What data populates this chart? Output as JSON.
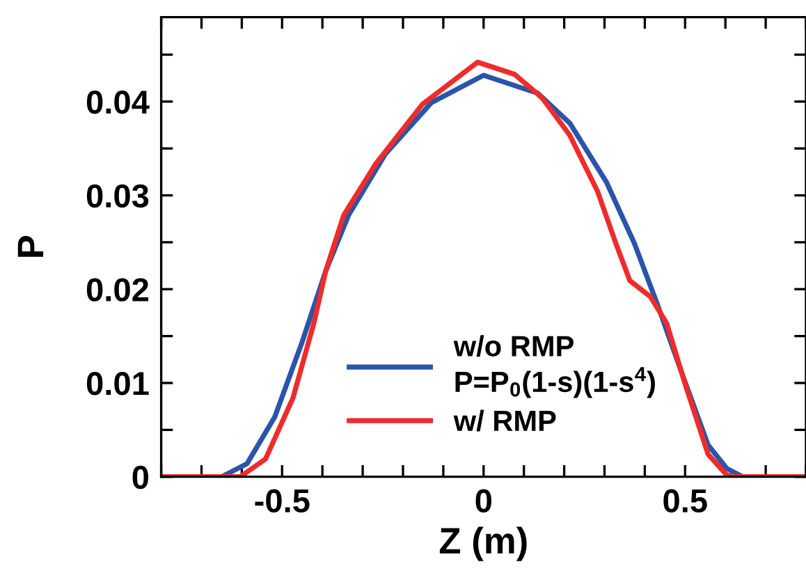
{
  "chart_data": {
    "type": "line",
    "xlabel": "Z (m)",
    "ylabel": "P",
    "xlim": [
      -0.8,
      0.8
    ],
    "ylim": [
      0,
      0.049
    ],
    "xticks": [
      {
        "value": -0.8,
        "label": null
      },
      {
        "value": -0.7,
        "label": null
      },
      {
        "value": -0.6,
        "label": null
      },
      -0.5,
      {
        "value": -0.4,
        "label": null
      },
      {
        "value": -0.3,
        "label": null
      },
      {
        "value": -0.2,
        "label": null
      },
      {
        "value": -0.1,
        "label": null
      },
      0,
      {
        "value": 0.1,
        "label": null
      },
      {
        "value": 0.2,
        "label": null
      },
      {
        "value": 0.3,
        "label": null
      },
      {
        "value": 0.4,
        "label": null
      },
      0.5,
      {
        "value": 0.6,
        "label": null
      },
      {
        "value": 0.7,
        "label": null
      },
      {
        "value": 0.8,
        "label": null
      }
    ],
    "yticks": [
      0,
      {
        "value": 0.005,
        "label": null
      },
      0.01,
      {
        "value": 0.015,
        "label": null
      },
      0.02,
      {
        "value": 0.025,
        "label": null
      },
      0.03,
      {
        "value": 0.035,
        "label": null
      },
      0.04,
      {
        "value": 0.045,
        "label": null
      }
    ],
    "grid": false,
    "legend": "bottom",
    "marker": "none",
    "line_style": "solid",
    "series": [
      {
        "name": "w/o RMP\nP=P$_{0}$(1-s)(1-s$^{4}$)",
        "color": "#2a55a8",
        "x": [
          -0.8,
          -0.65,
          -0.587,
          -0.518,
          -0.45,
          -0.392,
          -0.335,
          -0.244,
          -0.129,
          0,
          0.134,
          0.214,
          0.305,
          0.374,
          0.431,
          0.489,
          0.557,
          0.603,
          0.643,
          0.8
        ],
        "values": [
          0,
          0,
          0.0014,
          0.0064,
          0.0144,
          0.0219,
          0.0279,
          0.0344,
          0.0399,
          0.0428,
          0.0409,
          0.0377,
          0.0314,
          0.0249,
          0.0184,
          0.0114,
          0.0034,
          0.0009,
          0,
          0
        ]
      },
      {
        "name": "w/ RMP",
        "color": "#ee2c2c",
        "x": [
          -0.8,
          -0.604,
          -0.541,
          -0.473,
          -0.421,
          -0.392,
          -0.347,
          -0.267,
          -0.152,
          -0.015,
          0.077,
          0.145,
          0.214,
          0.283,
          0.328,
          0.363,
          0.414,
          0.454,
          0.5,
          0.557,
          0.603,
          0.626,
          0.8
        ],
        "values": [
          0,
          0,
          0.0019,
          0.0084,
          0.0164,
          0.0219,
          0.0279,
          0.0334,
          0.0397,
          0.0442,
          0.0429,
          0.0404,
          0.0364,
          0.0304,
          0.0249,
          0.0209,
          0.0192,
          0.0164,
          0.0099,
          0.0024,
          0.0002,
          0,
          0
        ]
      }
    ]
  }
}
